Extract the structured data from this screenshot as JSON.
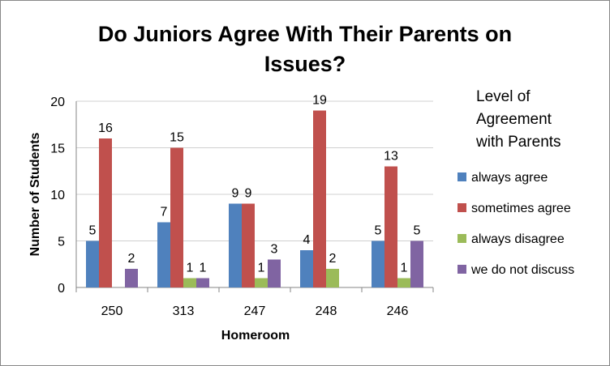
{
  "chart_data": {
    "type": "bar",
    "title_line1": "Do Juniors Agree With Their Parents on",
    "title_line2": "Issues?",
    "xlabel": "Homeroom",
    "ylabel": "Number of Students",
    "ylim": [
      0,
      20
    ],
    "yticks": [
      0,
      5,
      10,
      15,
      20
    ],
    "grid": true,
    "legend_position": "right",
    "legend_title": [
      "Level of",
      "Agreement",
      "with Parents"
    ],
    "categories": [
      "250",
      "313",
      "247",
      "248",
      "246"
    ],
    "series": [
      {
        "name": "always agree",
        "color": "#4F81BD",
        "values": [
          5,
          7,
          9,
          4,
          5
        ]
      },
      {
        "name": "sometimes agree",
        "color": "#C0504D",
        "values": [
          16,
          15,
          9,
          19,
          13
        ]
      },
      {
        "name": "always disagree",
        "color": "#9BBB59",
        "values": [
          null,
          1,
          1,
          2,
          1
        ]
      },
      {
        "name": "we do not discuss",
        "color": "#8064A2",
        "values": [
          2,
          1,
          3,
          null,
          5
        ]
      }
    ]
  }
}
